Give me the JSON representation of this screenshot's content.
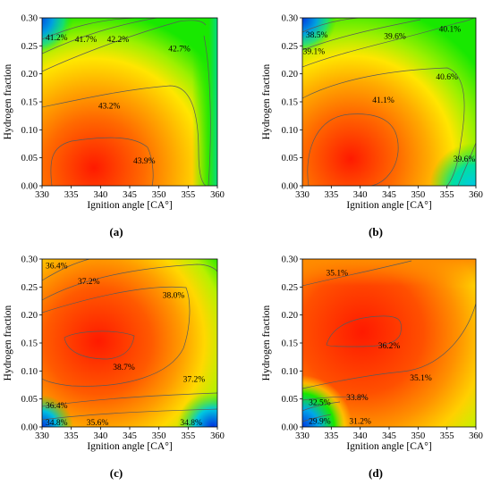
{
  "chart_data": [
    {
      "type": "heatmap",
      "panel_label": "a",
      "xlabel": "Ignition angle [CA°]",
      "ylabel": "Hydrogen fraction",
      "xlim": [
        330,
        360
      ],
      "ylim": [
        0,
        0.3
      ],
      "xticks": [
        "330",
        "335",
        "340",
        "345",
        "350",
        "355",
        "360"
      ],
      "yticks": [
        "0.00",
        "0.05",
        "0.10",
        "0.15",
        "0.20",
        "0.25",
        "0.30"
      ],
      "peak": {
        "x": 340,
        "y": 0.03
      },
      "contour_labels": [
        {
          "text": "41.2%",
          "x": 332.5,
          "y": 0.265
        },
        {
          "text": "41.7%",
          "x": 337.5,
          "y": 0.262
        },
        {
          "text": "42.2%",
          "x": 343,
          "y": 0.262
        },
        {
          "text": "42.7%",
          "x": 353.5,
          "y": 0.245
        },
        {
          "text": "43.2%",
          "x": 341.5,
          "y": 0.143
        },
        {
          "text": "43.9%",
          "x": 347.5,
          "y": 0.045
        }
      ]
    },
    {
      "type": "heatmap",
      "panel_label": "b",
      "xlabel": "Ignition angle [CA°]",
      "ylabel": "Hydrogen fraction",
      "xlim": [
        330,
        360
      ],
      "ylim": [
        0,
        0.3
      ],
      "xticks": [
        "330",
        "335",
        "340",
        "345",
        "350",
        "355",
        "360"
      ],
      "yticks": [
        "0.00",
        "0.05",
        "0.10",
        "0.15",
        "0.20",
        "0.25",
        "0.30"
      ],
      "peak": {
        "x": 340,
        "y": 0.05
      },
      "contour_labels": [
        {
          "text": "38.5%",
          "x": 332.5,
          "y": 0.27
        },
        {
          "text": "39.1%",
          "x": 332,
          "y": 0.24
        },
        {
          "text": "39.6%",
          "x": 346,
          "y": 0.267
        },
        {
          "text": "40.1%",
          "x": 355.5,
          "y": 0.28
        },
        {
          "text": "40.6%",
          "x": 355,
          "y": 0.195
        },
        {
          "text": "41.1%",
          "x": 344,
          "y": 0.153
        },
        {
          "text": "39.6%",
          "x": 358,
          "y": 0.048
        }
      ]
    },
    {
      "type": "heatmap",
      "panel_label": "c",
      "xlabel": "Ignition angle [CA°]",
      "ylabel": "Hydrogen fraction",
      "xlim": [
        330,
        360
      ],
      "ylim": [
        0,
        0.3
      ],
      "xticks": [
        "330",
        "335",
        "340",
        "345",
        "350",
        "355",
        "360"
      ],
      "yticks": [
        "0.00",
        "0.05",
        "0.10",
        "0.15",
        "0.20",
        "0.25",
        "0.30"
      ],
      "peak": {
        "x": 339,
        "y": 0.15
      },
      "contour_labels": [
        {
          "text": "36.4%",
          "x": 332.5,
          "y": 0.288
        },
        {
          "text": "37.2%",
          "x": 338,
          "y": 0.26
        },
        {
          "text": "38.0%",
          "x": 352.5,
          "y": 0.235
        },
        {
          "text": "38.7%",
          "x": 344,
          "y": 0.107
        },
        {
          "text": "37.2%",
          "x": 356,
          "y": 0.085
        },
        {
          "text": "36.4%",
          "x": 332.5,
          "y": 0.038
        },
        {
          "text": "34.8%",
          "x": 332.5,
          "y": 0.008
        },
        {
          "text": "35.6%",
          "x": 339.5,
          "y": 0.008
        },
        {
          "text": "34.8%",
          "x": 355.5,
          "y": 0.008
        }
      ]
    },
    {
      "type": "heatmap",
      "panel_label": "d",
      "xlabel": "Ignition angle [CA°]",
      "ylabel": "Hydrogen fraction",
      "xlim": [
        330,
        360
      ],
      "ylim": [
        0,
        0.3
      ],
      "xticks": [
        "330",
        "335",
        "340",
        "345",
        "350",
        "355",
        "360"
      ],
      "yticks": [
        "0.00",
        "0.05",
        "0.10",
        "0.15",
        "0.20",
        "0.25",
        "0.30"
      ],
      "peak": {
        "x": 341,
        "y": 0.17
      },
      "contour_labels": [
        {
          "text": "35.1%",
          "x": 336,
          "y": 0.275
        },
        {
          "text": "36.2%",
          "x": 345,
          "y": 0.145
        },
        {
          "text": "35.1%",
          "x": 350.5,
          "y": 0.088
        },
        {
          "text": "33.8%",
          "x": 339.5,
          "y": 0.053
        },
        {
          "text": "32.5%",
          "x": 333,
          "y": 0.044
        },
        {
          "text": "29.9%",
          "x": 333,
          "y": 0.01
        },
        {
          "text": "31.2%",
          "x": 340,
          "y": 0.01
        }
      ]
    }
  ],
  "captions": {
    "a": "(a)",
    "b": "(b)",
    "c": "(c)",
    "d": "(d)"
  },
  "colors": {
    "peak": "#ff1a00",
    "orange": "#ff8c00",
    "yellow": "#ffe600",
    "green": "#18e800",
    "cyan": "#00d8d8",
    "blue": "#0030e0",
    "contour": "#5a5a5a"
  }
}
